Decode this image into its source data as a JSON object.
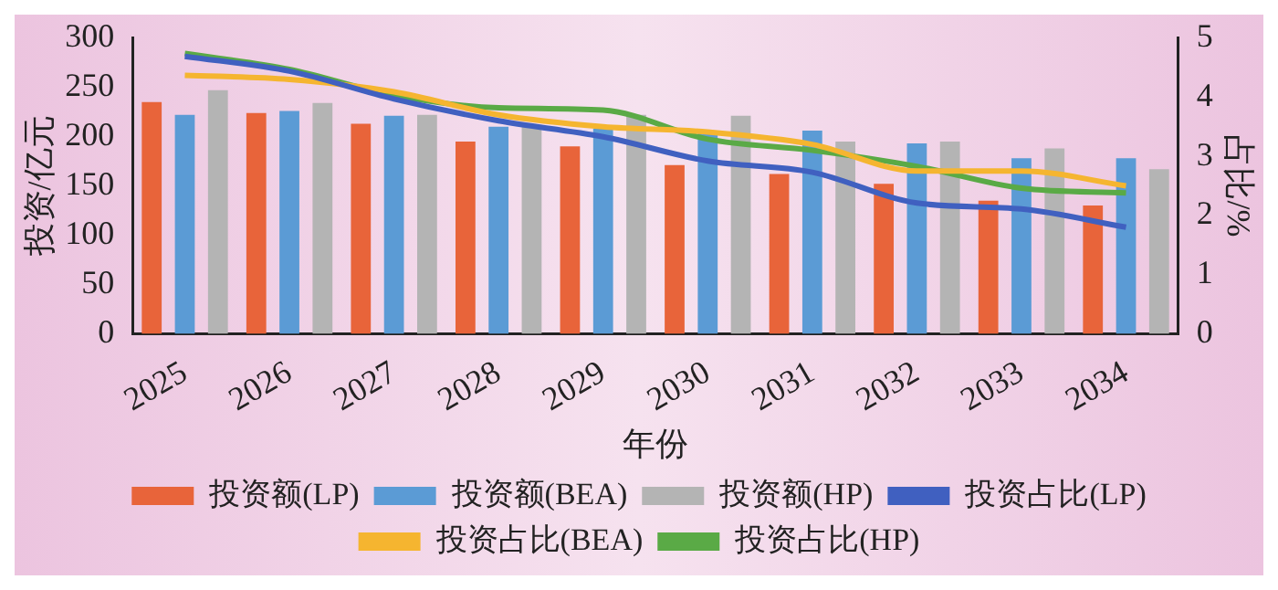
{
  "chart_data": {
    "type": "bar",
    "xlabel": "年份",
    "ylabel": "投资/亿元",
    "y2label": "占比/%",
    "categories": [
      "2025",
      "2026",
      "2027",
      "2028",
      "2029",
      "2030",
      "2031",
      "2032",
      "2033",
      "2034"
    ],
    "series": [
      {
        "name": "投资额(LP)",
        "color": "#e8643a",
        "values": [
          235,
          224,
          213,
          195,
          190,
          171,
          162,
          152,
          135,
          130
        ]
      },
      {
        "name": "投资额(BEA)",
        "color": "#5b9bd5",
        "values": [
          222,
          226,
          221,
          210,
          208,
          205,
          206,
          193,
          178,
          178
        ]
      },
      {
        "name": "投资额(HP)",
        "color": "#b4b4b4",
        "values": [
          247,
          234,
          222,
          212,
          222,
          221,
          195,
          195,
          188,
          167
        ]
      },
      {
        "name": "投资占比(LP)",
        "type": "line",
        "axis": "y2",
        "color": "#4060c0",
        "values": [
          4.69,
          4.44,
          3.97,
          3.6,
          3.33,
          2.92,
          2.73,
          2.21,
          2.11,
          1.8
        ]
      },
      {
        "name": "投资占比(BEA)",
        "type": "line",
        "axis": "y2",
        "color": "#f5b530",
        "values": [
          4.37,
          4.3,
          4.09,
          3.7,
          3.5,
          3.41,
          3.2,
          2.75,
          2.75,
          2.5
        ]
      },
      {
        "name": "投资占比(HP)",
        "type": "line",
        "axis": "y2",
        "color": "#5aaa46",
        "values": [
          4.74,
          4.47,
          4.03,
          3.82,
          3.78,
          3.29,
          3.1,
          2.83,
          2.46,
          2.38
        ]
      }
    ],
    "ylim": [
      0,
      300
    ],
    "yticks": [
      0,
      50,
      100,
      150,
      200,
      250,
      300
    ],
    "y2lim": [
      0,
      5
    ],
    "y2ticks": [
      0,
      1,
      2,
      3,
      4,
      5
    ],
    "grid": false,
    "legend": "bottom",
    "marker": "none",
    "line_style": "solid"
  }
}
